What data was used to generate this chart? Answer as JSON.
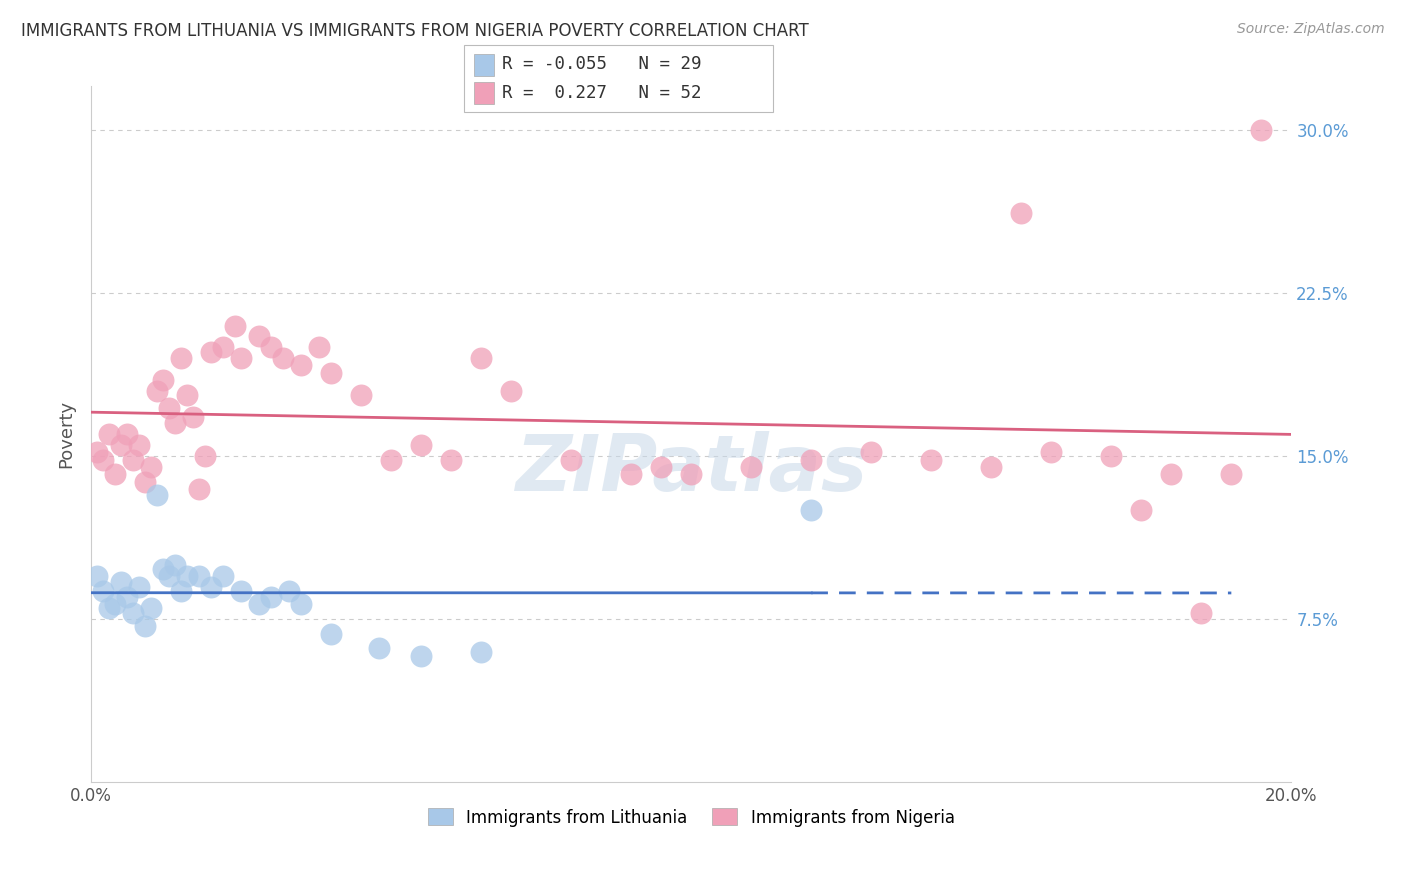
{
  "title": "IMMIGRANTS FROM LITHUANIA VS IMMIGRANTS FROM NIGERIA POVERTY CORRELATION CHART",
  "source": "Source: ZipAtlas.com",
  "ylabel": "Poverty",
  "xlim": [
    0.0,
    0.2
  ],
  "ylim": [
    0.0,
    0.32
  ],
  "xticks": [
    0.0,
    0.05,
    0.1,
    0.15,
    0.2
  ],
  "xtick_labels": [
    "0.0%",
    "",
    "",
    "",
    "20.0%"
  ],
  "yticks": [
    0.075,
    0.15,
    0.225,
    0.3
  ],
  "ytick_labels": [
    "7.5%",
    "15.0%",
    "22.5%",
    "30.0%"
  ],
  "legend_R1": "-0.055",
  "legend_N1": "29",
  "legend_R2": "0.227",
  "legend_N2": "52",
  "color_lithuania": "#a8c8e8",
  "color_nigeria": "#f0a0b8",
  "color_line_lithuania": "#4472c4",
  "color_line_nigeria": "#d96080",
  "watermark": "ZIPatlas",
  "background_color": "#ffffff",
  "grid_color": "#cccccc",
  "lithuania_x": [
    0.001,
    0.002,
    0.003,
    0.004,
    0.005,
    0.006,
    0.007,
    0.008,
    0.009,
    0.01,
    0.011,
    0.012,
    0.013,
    0.014,
    0.015,
    0.016,
    0.018,
    0.02,
    0.022,
    0.025,
    0.028,
    0.03,
    0.033,
    0.035,
    0.04,
    0.048,
    0.055,
    0.065,
    0.12
  ],
  "lithuania_y": [
    0.095,
    0.088,
    0.08,
    0.082,
    0.092,
    0.085,
    0.078,
    0.09,
    0.072,
    0.08,
    0.132,
    0.098,
    0.095,
    0.1,
    0.088,
    0.095,
    0.095,
    0.09,
    0.095,
    0.088,
    0.082,
    0.085,
    0.088,
    0.082,
    0.068,
    0.062,
    0.058,
    0.06,
    0.125
  ],
  "nigeria_x": [
    0.001,
    0.002,
    0.003,
    0.004,
    0.005,
    0.006,
    0.007,
    0.008,
    0.009,
    0.01,
    0.011,
    0.012,
    0.013,
    0.014,
    0.015,
    0.016,
    0.017,
    0.018,
    0.019,
    0.02,
    0.022,
    0.024,
    0.025,
    0.028,
    0.03,
    0.032,
    0.035,
    0.038,
    0.04,
    0.045,
    0.05,
    0.055,
    0.06,
    0.065,
    0.07,
    0.08,
    0.09,
    0.095,
    0.1,
    0.11,
    0.12,
    0.13,
    0.14,
    0.15,
    0.155,
    0.16,
    0.17,
    0.175,
    0.18,
    0.185,
    0.19,
    0.195
  ],
  "nigeria_y": [
    0.152,
    0.148,
    0.16,
    0.142,
    0.155,
    0.16,
    0.148,
    0.155,
    0.138,
    0.145,
    0.18,
    0.185,
    0.172,
    0.165,
    0.195,
    0.178,
    0.168,
    0.135,
    0.15,
    0.198,
    0.2,
    0.21,
    0.195,
    0.205,
    0.2,
    0.195,
    0.192,
    0.2,
    0.188,
    0.178,
    0.148,
    0.155,
    0.148,
    0.195,
    0.18,
    0.148,
    0.142,
    0.145,
    0.142,
    0.145,
    0.148,
    0.152,
    0.148,
    0.145,
    0.262,
    0.152,
    0.15,
    0.125,
    0.142,
    0.078,
    0.142,
    0.3
  ]
}
